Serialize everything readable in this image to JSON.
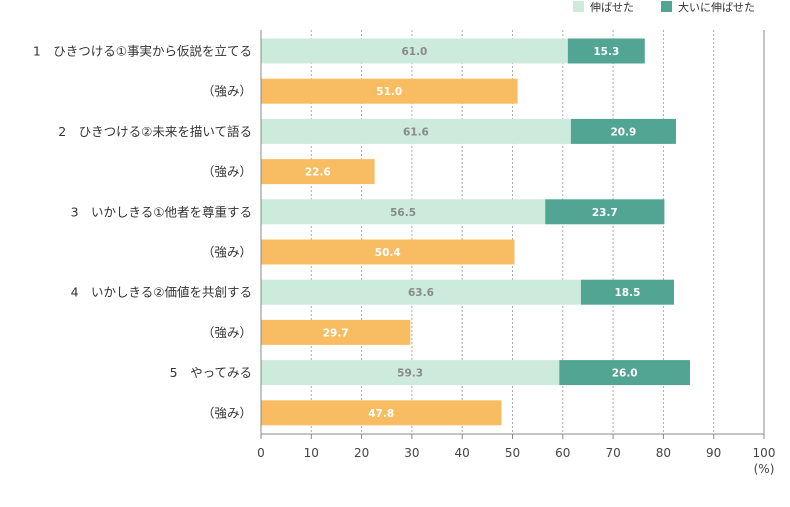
{
  "colors": {
    "grown": "#cdebdc",
    "greatly_grown": "#52a592",
    "strength": "#f8bd62",
    "axis": "#888888",
    "grid": "#aaaaaa"
  },
  "chart_data": {
    "type": "bar",
    "orientation": "horizontal",
    "stacked": true,
    "unit": "(%)",
    "xlim": [
      0,
      100
    ],
    "xticks": [
      0,
      10,
      20,
      30,
      40,
      50,
      60,
      70,
      80,
      90,
      100
    ],
    "grid": "vertical-dotted",
    "legend_position": "top-right",
    "legend": [
      {
        "name": "伸ばせた",
        "color_key": "grown"
      },
      {
        "name": "大いに伸ばせた",
        "color_key": "greatly_grown"
      }
    ],
    "rows": [
      {
        "label": "1　ひきつける①事実から仮説を立てる",
        "kind": "growth",
        "values": [
          61.0,
          15.3
        ],
        "labels": [
          "61.0",
          "15.3"
        ]
      },
      {
        "label": "（強み）",
        "kind": "strength",
        "values": [
          51.0
        ],
        "labels": [
          "51.0"
        ]
      },
      {
        "label": "2　ひきつける②未来を描いて語る",
        "kind": "growth",
        "values": [
          61.6,
          20.9
        ],
        "labels": [
          "61.6",
          "20.9"
        ]
      },
      {
        "label": "（強み）",
        "kind": "strength",
        "values": [
          22.6
        ],
        "labels": [
          "22.6"
        ]
      },
      {
        "label": "3　いかしきる①他者を尊重する",
        "kind": "growth",
        "values": [
          56.5,
          23.7
        ],
        "labels": [
          "56.5",
          "23.7"
        ]
      },
      {
        "label": "（強み）",
        "kind": "strength",
        "values": [
          50.4
        ],
        "labels": [
          "50.4"
        ]
      },
      {
        "label": "4　いかしきる②価値を共創する",
        "kind": "growth",
        "values": [
          63.6,
          18.5
        ],
        "labels": [
          "63.6",
          "18.5"
        ]
      },
      {
        "label": "（強み）",
        "kind": "strength",
        "values": [
          29.7
        ],
        "labels": [
          "29.7"
        ]
      },
      {
        "label": "5　やってみる",
        "kind": "growth",
        "values": [
          59.3,
          26.0
        ],
        "labels": [
          "59.3",
          "26.0"
        ]
      },
      {
        "label": "（強み）",
        "kind": "strength",
        "values": [
          47.8
        ],
        "labels": [
          "47.8"
        ]
      }
    ]
  }
}
